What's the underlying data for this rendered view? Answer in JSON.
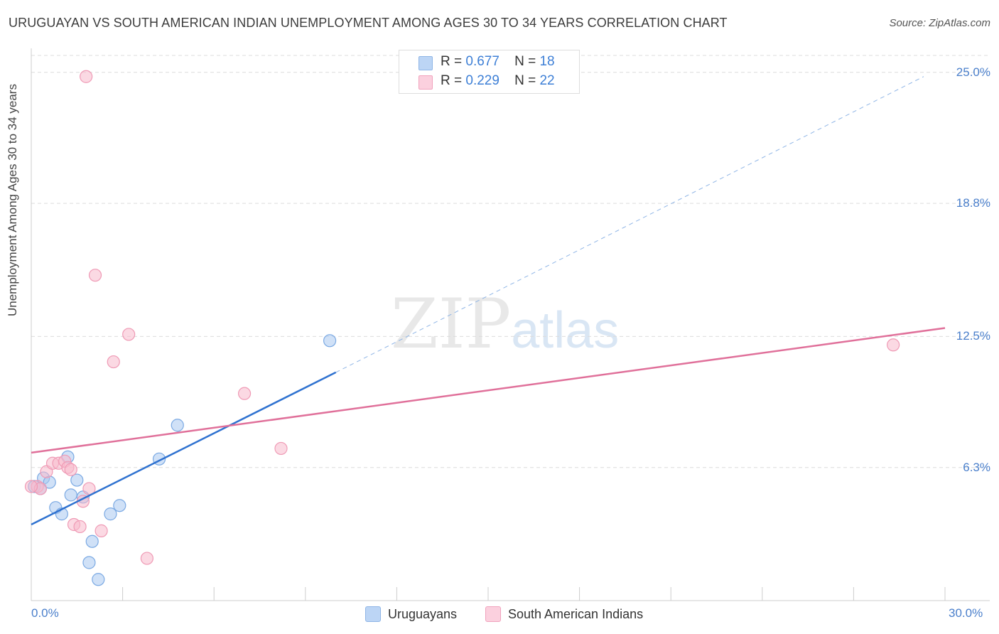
{
  "title": "URUGUAYAN VS SOUTH AMERICAN INDIAN UNEMPLOYMENT AMONG AGES 30 TO 34 YEARS CORRELATION CHART",
  "source": "Source: ZipAtlas.com",
  "watermark": {
    "zip": "ZIP",
    "atlas": "atlas"
  },
  "legend": {
    "r_label": "R =",
    "n_label": "N =",
    "series": [
      {
        "name": "Uruguayans",
        "r": "0.677",
        "n": "18"
      },
      {
        "name": "South American Indians",
        "r": "0.229",
        "n": "22"
      }
    ]
  },
  "chart_data": {
    "type": "scatter",
    "title": "URUGUAYAN VS SOUTH AMERICAN INDIAN UNEMPLOYMENT AMONG AGES 30 TO 34 YEARS CORRELATION CHART",
    "xlabel": "",
    "ylabel": "Unemployment Among Ages 30 to 34 years",
    "xlim": [
      0,
      30
    ],
    "ylim": [
      0,
      25.8
    ],
    "x_tick_labels": [
      "0.0%",
      "30.0%"
    ],
    "y_ticks": [
      6.3,
      12.5,
      18.8,
      25.0
    ],
    "y_tick_labels": [
      "6.3%",
      "12.5%",
      "18.8%",
      "25.0%"
    ],
    "grid": true,
    "series": [
      {
        "name": "Uruguayans",
        "color": "#a9c8f0",
        "line_color": "#2f72d0",
        "points": [
          [
            0.1,
            5.4
          ],
          [
            0.3,
            5.3
          ],
          [
            0.4,
            5.8
          ],
          [
            0.6,
            5.6
          ],
          [
            0.8,
            4.4
          ],
          [
            1.0,
            4.1
          ],
          [
            1.2,
            6.8
          ],
          [
            1.3,
            5.0
          ],
          [
            1.5,
            5.7
          ],
          [
            1.7,
            4.9
          ],
          [
            2.0,
            2.8
          ],
          [
            1.9,
            1.8
          ],
          [
            2.2,
            1.0
          ],
          [
            2.6,
            4.1
          ],
          [
            2.9,
            4.5
          ],
          [
            4.2,
            6.7
          ],
          [
            4.8,
            8.3
          ],
          [
            9.8,
            12.3
          ]
        ],
        "trend": {
          "x": [
            0,
            10
          ],
          "y": [
            3.6,
            10.8
          ]
        },
        "trend_extension": {
          "x": [
            10,
            29.3
          ],
          "y": [
            10.8,
            24.8
          ]
        }
      },
      {
        "name": "South American Indians",
        "color": "#f7b9cc",
        "line_color": "#e0709a",
        "points": [
          [
            0.2,
            5.4
          ],
          [
            0.3,
            5.3
          ],
          [
            0.5,
            6.1
          ],
          [
            0.7,
            6.5
          ],
          [
            0.9,
            6.5
          ],
          [
            1.1,
            6.6
          ],
          [
            1.2,
            6.3
          ],
          [
            1.3,
            6.2
          ],
          [
            1.4,
            3.6
          ],
          [
            1.6,
            3.5
          ],
          [
            1.7,
            4.7
          ],
          [
            1.9,
            5.3
          ],
          [
            1.8,
            24.8
          ],
          [
            2.1,
            15.4
          ],
          [
            2.3,
            3.3
          ],
          [
            2.7,
            11.3
          ],
          [
            3.2,
            12.6
          ],
          [
            3.8,
            2.0
          ],
          [
            7.0,
            9.8
          ],
          [
            8.2,
            7.2
          ],
          [
            28.3,
            12.1
          ],
          [
            0.0,
            5.4
          ]
        ],
        "trend": {
          "x": [
            0,
            30
          ],
          "y": [
            7.0,
            12.9
          ]
        }
      }
    ]
  }
}
